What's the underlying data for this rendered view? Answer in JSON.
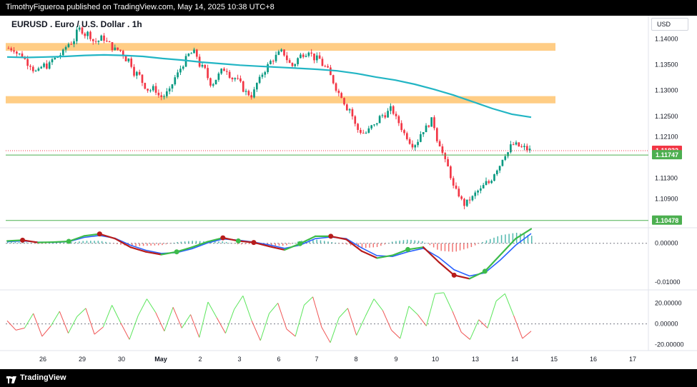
{
  "header": {
    "publish_line": "TimothyFigueroa published on TradingView.com, May 14, 2025 10:38 UTC+8"
  },
  "symbol": {
    "title": "EURUSD . Euro / U.S. Dollar . 1h",
    "currency": "USD"
  },
  "footer": {
    "brand": "TradingView",
    "logo_icon": "tradingview-logo-icon"
  },
  "colors": {
    "up_candle": "#089981",
    "down_candle": "#f23645",
    "zone": "#ffc470",
    "ema": "#22b5c4",
    "level_line": "#4caf50",
    "osc_green": "#3dbb4a",
    "osc_blue": "#2962ff",
    "osc_red": "#b71c1c",
    "hist_teal": "#26a69a",
    "hist_red": "#ef5350",
    "osc2_up": "#5ce65c",
    "osc2_down": "#f05454",
    "current_price_tag": "#f23645",
    "level_tag": "#4caf50"
  },
  "chart_data": [
    {
      "type": "candlestick",
      "pane": "price",
      "title": "EURUSD . Euro / U.S. Dollar . 1h",
      "y_ticks": [
        "1.14000",
        "1.13500",
        "1.13000",
        "1.12500",
        "1.12100",
        "1.11300",
        "1.10900"
      ],
      "ylim": [
        1.1035,
        1.1445
      ],
      "x_ticks": [
        "26",
        "29",
        "30",
        "May",
        "2",
        "3",
        "6",
        "7",
        "8",
        "9",
        "10",
        "13",
        "14",
        "15",
        "16",
        "17"
      ],
      "current_price_label": "1.11832",
      "levels": [
        {
          "label": "1.11747",
          "value": 1.11747
        },
        {
          "label": "1.10478",
          "value": 1.10478
        }
      ],
      "resistance_zones": [
        {
          "from": 1.1377,
          "to": 1.1392
        },
        {
          "from": 1.1275,
          "to": 1.1289
        }
      ],
      "price_path_close": [
        1.1382,
        1.1368,
        1.1352,
        1.1335,
        1.1349,
        1.1361,
        1.1372,
        1.1394,
        1.1418,
        1.141,
        1.1395,
        1.1402,
        1.1385,
        1.1377,
        1.136,
        1.1332,
        1.131,
        1.1302,
        1.1288,
        1.1296,
        1.1331,
        1.1359,
        1.1372,
        1.1343,
        1.1316,
        1.1329,
        1.1342,
        1.1324,
        1.1304,
        1.1292,
        1.1319,
        1.1347,
        1.1365,
        1.1372,
        1.1348,
        1.1367,
        1.138,
        1.136,
        1.1345,
        1.1318,
        1.1292,
        1.1265,
        1.1224,
        1.1218,
        1.123,
        1.1252,
        1.1262,
        1.1238,
        1.1212,
        1.1198,
        1.1225,
        1.124,
        1.1198,
        1.115,
        1.1102,
        1.108,
        1.1091,
        1.1106,
        1.1121,
        1.115,
        1.1179,
        1.1195,
        1.1188,
        1.1183
      ],
      "ema_path": [
        1.1365,
        1.1364,
        1.1365,
        1.1366,
        1.1368,
        1.1369,
        1.1368,
        1.1366,
        1.1362,
        1.1359,
        1.1355,
        1.1352,
        1.1349,
        1.1347,
        1.1345,
        1.1343,
        1.1341,
        1.1338,
        1.1333,
        1.1326,
        1.132,
        1.1312,
        1.1302,
        1.1291,
        1.1278,
        1.1265,
        1.1254,
        1.1248
      ]
    },
    {
      "type": "line",
      "pane": "oscillator-1",
      "y_ticks": [
        "0.00000",
        "-0.01000"
      ],
      "ylim": [
        -0.0118,
        0.0038
      ],
      "series": [
        {
          "values": [
            0.0006,
            0.0008,
            0.0002,
            0.0003,
            0.0005,
            0.0019,
            0.0024,
            0.0012,
            -0.001,
            -0.0022,
            -0.0029,
            -0.0022,
            -0.001,
            0.0004,
            0.0014,
            0.0006,
            0.0002,
            -0.0008,
            -0.0017,
            -0.0001,
            0.0018,
            0.0018,
            0.001,
            -0.002,
            -0.0038,
            -0.0031,
            -0.0016,
            -0.001,
            -0.0048,
            -0.0082,
            -0.0091,
            -0.0072,
            -0.003,
            0.0012,
            0.0037
          ]
        },
        {
          "values": [
            0.0004,
            0.0006,
            0.0003,
            0.0002,
            0.0004,
            0.0015,
            0.002,
            0.0013,
            -0.0005,
            -0.0018,
            -0.0026,
            -0.0024,
            -0.0014,
            0.0001,
            0.0011,
            0.0008,
            0.0003,
            -0.0004,
            -0.0013,
            -0.0005,
            0.0012,
            0.0016,
            0.0012,
            -0.0012,
            -0.0032,
            -0.0034,
            -0.0022,
            -0.0013,
            -0.0036,
            -0.0068,
            -0.0084,
            -0.0076,
            -0.0043,
            -0.0005,
            0.0025
          ]
        }
      ],
      "cross_markers_green": [
        {
          "i": 4,
          "v": 0.0005
        },
        {
          "i": 11,
          "v": -0.0022
        },
        {
          "i": 15,
          "v": 0.0006
        },
        {
          "i": 19,
          "v": -0.0001
        },
        {
          "i": 26,
          "v": -0.0016
        },
        {
          "i": 31,
          "v": -0.0072
        }
      ],
      "cross_markers_red": [
        {
          "i": 1,
          "v": 0.0008
        },
        {
          "i": 6,
          "v": 0.0024
        },
        {
          "i": 14,
          "v": 0.0014
        },
        {
          "i": 16,
          "v": 0.0002
        },
        {
          "i": 21,
          "v": 0.0018
        },
        {
          "i": 29,
          "v": -0.0082
        }
      ]
    },
    {
      "type": "line",
      "pane": "oscillator-2",
      "y_ticks": [
        "20.00000",
        "0.00000",
        "-20.00000"
      ],
      "ylim": [
        -25,
        32
      ],
      "values": [
        3,
        -6,
        -4,
        10,
        -12,
        -2,
        12,
        -9,
        7,
        15,
        -10,
        -3,
        18,
        1,
        -15,
        8,
        24,
        11,
        -7,
        16,
        -4,
        9,
        -13,
        21,
        6,
        -9,
        14,
        27,
        3,
        -16,
        10,
        20,
        -5,
        -12,
        18,
        26,
        -3,
        -18,
        6,
        15,
        -11,
        7,
        24,
        13,
        -6,
        -14,
        17,
        9,
        -2,
        29,
        30,
        12,
        -8,
        -15,
        4,
        -4,
        22,
        29,
        8,
        -14,
        -7
      ]
    }
  ]
}
